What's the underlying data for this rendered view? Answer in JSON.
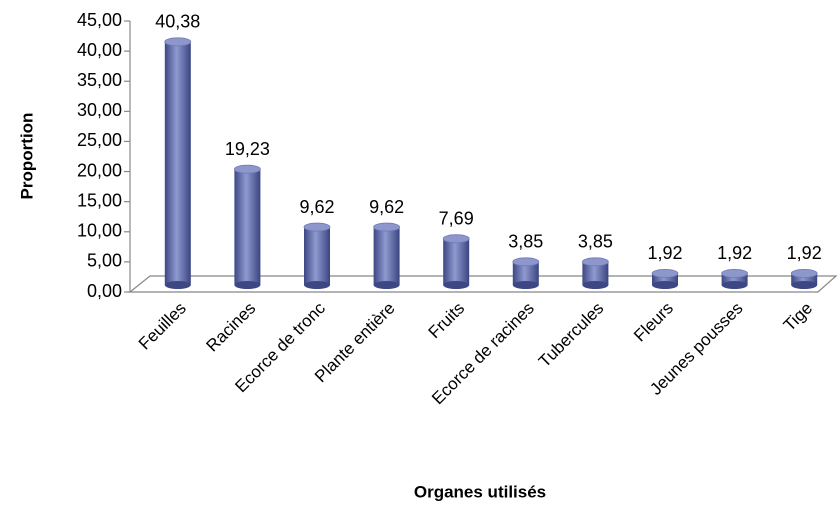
{
  "chart_data": {
    "type": "bar3d",
    "x_label": "Organes utilisés",
    "y_label": "Proportion",
    "categories": [
      "Feuilles",
      "Racines",
      "Ecorce de tronc",
      "Plante entière",
      "Fruits",
      "Ecorce de racines",
      "Tubercules",
      "Fleurs",
      "Jeunes pousses",
      "Tige"
    ],
    "values": [
      40.38,
      19.23,
      9.62,
      9.62,
      7.69,
      3.85,
      3.85,
      1.92,
      1.92,
      1.92
    ],
    "value_labels": [
      "40,38",
      "19,23",
      "9,62",
      "9,62",
      "7,69",
      "3,85",
      "3,85",
      "1,92",
      "1,92",
      "1,92"
    ],
    "color": "#5a66a6",
    "ylim": [
      0,
      45
    ],
    "yticks": [
      {
        "value": 0,
        "label": "0,00"
      },
      {
        "value": 5,
        "label": "5,00"
      },
      {
        "value": 10,
        "label": "10,00"
      },
      {
        "value": 15,
        "label": "15,00"
      },
      {
        "value": 20,
        "label": "20,00"
      },
      {
        "value": 25,
        "label": "25,00"
      },
      {
        "value": 30,
        "label": "30,00"
      },
      {
        "value": 35,
        "label": "35,00"
      },
      {
        "value": 40,
        "label": "40,00"
      },
      {
        "value": 45,
        "label": "45,00"
      }
    ]
  }
}
